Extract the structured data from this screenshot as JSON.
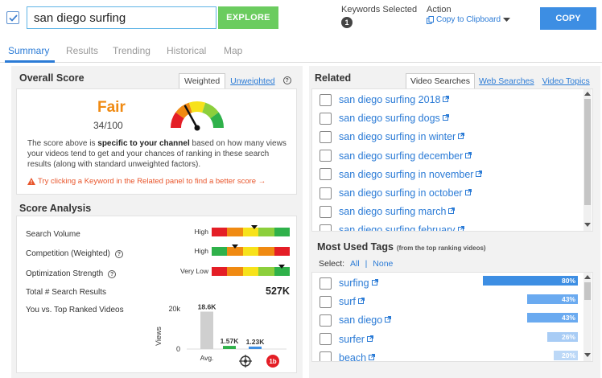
{
  "search": {
    "value": "san diego surfing",
    "explore_label": "EXPLORE",
    "keywords_selected_label": "Keywords Selected",
    "keywords_selected_count": "1",
    "action_label": "Action",
    "action_value": "Copy to Clipboard",
    "copy_label": "COPY"
  },
  "tabs": [
    "Summary",
    "Results",
    "Trending",
    "Historical",
    "Map"
  ],
  "overall_score": {
    "title": "Overall Score",
    "tab_weighted": "Weighted",
    "tab_unweighted": "Unweighted",
    "rating": "Fair",
    "score": "34/100",
    "gauge_fraction": 0.34,
    "desc_1": "The score above is ",
    "desc_bold": "specific to your channel",
    "desc_2": " based on how many views your videos tend to get and your chances of ranking in these search results (along with standard unweighted factors).",
    "tip": "Try clicking a Keyword in the Related panel to find a better score →"
  },
  "score_analysis": {
    "title": "Score Analysis",
    "metrics": [
      {
        "label": "Search Volume",
        "level": "High",
        "marker_fraction": 0.55,
        "help": false
      },
      {
        "label": "Competition (Weighted)",
        "level": "High",
        "marker_fraction": 0.3,
        "help": true
      },
      {
        "label": "Optimization Strength",
        "level": "Very Low",
        "marker_fraction": 0.9,
        "help": true
      }
    ],
    "total_label": "Total # Search Results",
    "total_value": "527K",
    "vs_label": "You vs. Top Ranked Videos",
    "chart": {
      "y_label": "Views",
      "y_ticks": [
        "20k",
        "0"
      ],
      "bars": [
        {
          "label": "Avg.",
          "value": 18600,
          "value_label": "18.6K",
          "color": "#cfcfcf"
        },
        {
          "label": "target-icon",
          "value": 1570,
          "value_label": "1.57K",
          "color": "#2fb14a"
        },
        {
          "label": "channel-logo",
          "value": 1230,
          "value_label": "1.23K",
          "color": "#3d8ee3"
        }
      ]
    }
  },
  "related": {
    "title": "Related",
    "tabs": [
      "Video Searches",
      "Web Searches",
      "Video Topics"
    ],
    "items": [
      "san diego surfing 2018",
      "san diego surfing dogs",
      "san diego surfing in winter",
      "san diego surfing december",
      "san diego surfing in november",
      "san diego surfing in october",
      "san diego surfing march",
      "san diego surfing february"
    ]
  },
  "tags": {
    "title": "Most Used Tags",
    "subtitle": "(from the top ranking videos)",
    "select_label": "Select:",
    "all_label": "All",
    "sep": "|",
    "none_label": "None",
    "items": [
      {
        "tag": "surfing",
        "percent": 80,
        "percent_label": "80%",
        "color": "#3d8ee3"
      },
      {
        "tag": "surf",
        "percent": 43,
        "percent_label": "43%",
        "color": "#6aaaf0"
      },
      {
        "tag": "san diego",
        "percent": 43,
        "percent_label": "43%",
        "color": "#6aaaf0"
      },
      {
        "tag": "surfer",
        "percent": 26,
        "percent_label": "26%",
        "color": "#a8ccf5"
      },
      {
        "tag": "beach",
        "percent": 20,
        "percent_label": "20%",
        "color": "#bcd8f7"
      }
    ]
  },
  "colors": {
    "accent": "#2b7bd6",
    "explore": "#6bcc5f",
    "fair": "#f08a12"
  }
}
